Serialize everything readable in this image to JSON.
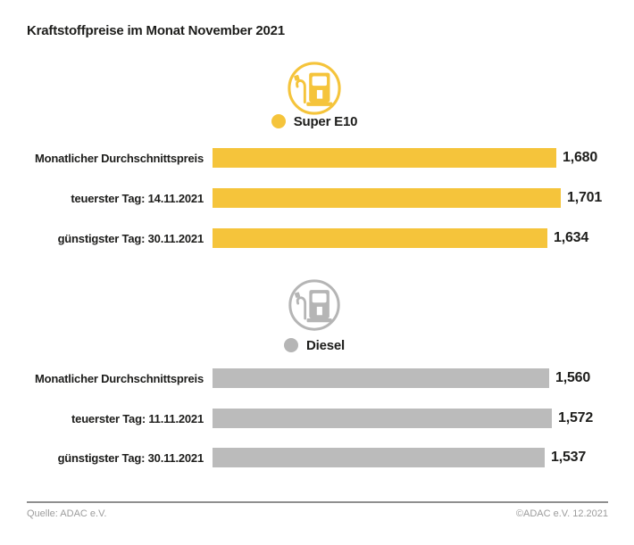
{
  "title": "Kraftstoffpreise im Monat November 2021",
  "colors": {
    "super_e10_yellow": "#F5C43B",
    "diesel_gray": "#BBBBBB",
    "text_dark": "#1D1D1B",
    "footer_gray": "#9C9C9C"
  },
  "chart_data": [
    {
      "type": "bar",
      "series_name": "Super E10",
      "color": "#F5C43B",
      "categories": [
        "Monatlicher Durchschnittspreis",
        "teuerster Tag: 14.11.2021",
        "günstigster Tag: 30.11.2021"
      ],
      "values": [
        1.68,
        1.701,
        1.634
      ],
      "value_labels": [
        "1,680",
        "1,701",
        "1,634"
      ],
      "orientation": "horizontal",
      "grid": false
    },
    {
      "type": "bar",
      "series_name": "Diesel",
      "color": "#BBBBBB",
      "categories": [
        "Monatlicher Durchschnittspreis",
        "teuerster Tag: 11.11.2021",
        "günstigster Tag: 30.11.2021"
      ],
      "values": [
        1.56,
        1.572,
        1.537
      ],
      "value_labels": [
        "1,560",
        "1,572",
        "1,537"
      ],
      "orientation": "horizontal",
      "grid": false
    }
  ],
  "footer": {
    "source": "Quelle: ADAC e.V.",
    "copyright": "©ADAC e.V. 12.2021"
  }
}
